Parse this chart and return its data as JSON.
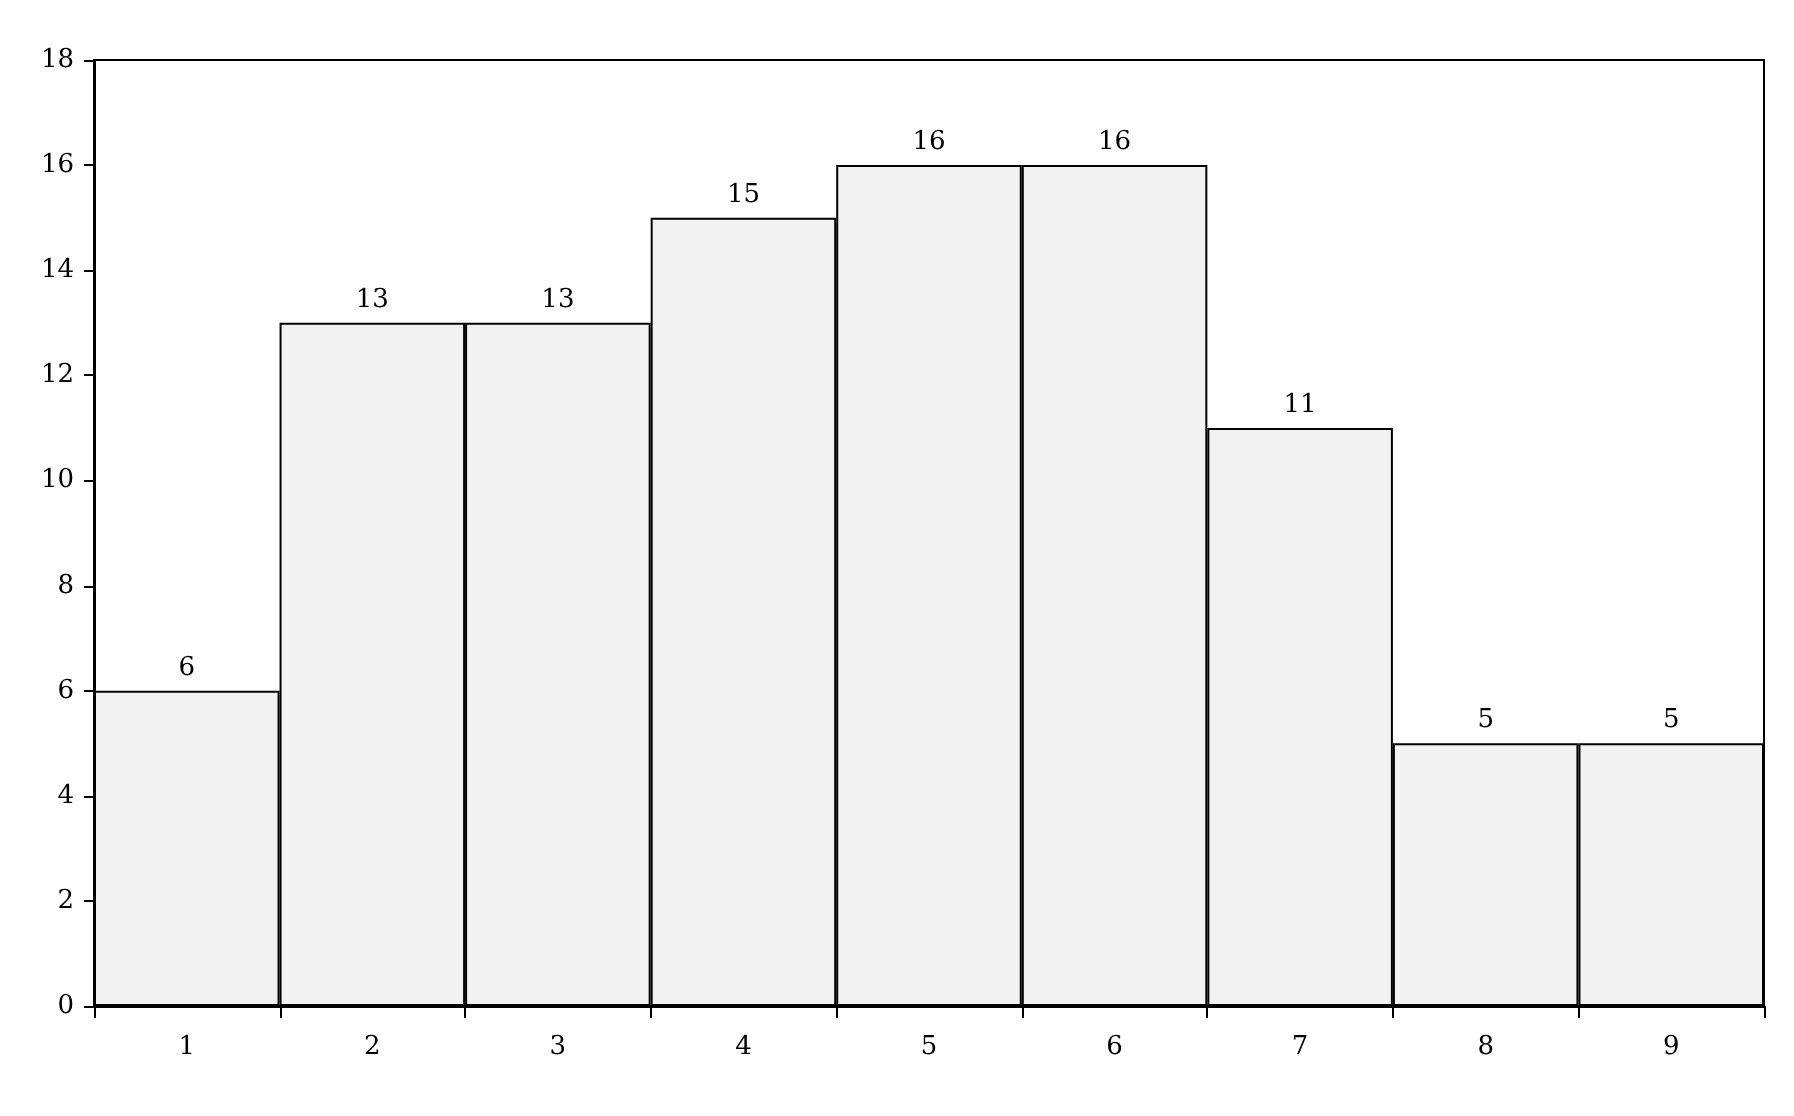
{
  "chart_data": {
    "type": "bar",
    "categories": [
      "1",
      "2",
      "3",
      "4",
      "5",
      "6",
      "7",
      "8",
      "9"
    ],
    "values": [
      6,
      13,
      13,
      15,
      16,
      16,
      11,
      5,
      5
    ],
    "color": "#f2f2f2",
    "ylim": [
      0,
      18
    ],
    "yticks": [
      0,
      2,
      4,
      6,
      8,
      10,
      12,
      14,
      16,
      18
    ],
    "data_labels": true
  }
}
